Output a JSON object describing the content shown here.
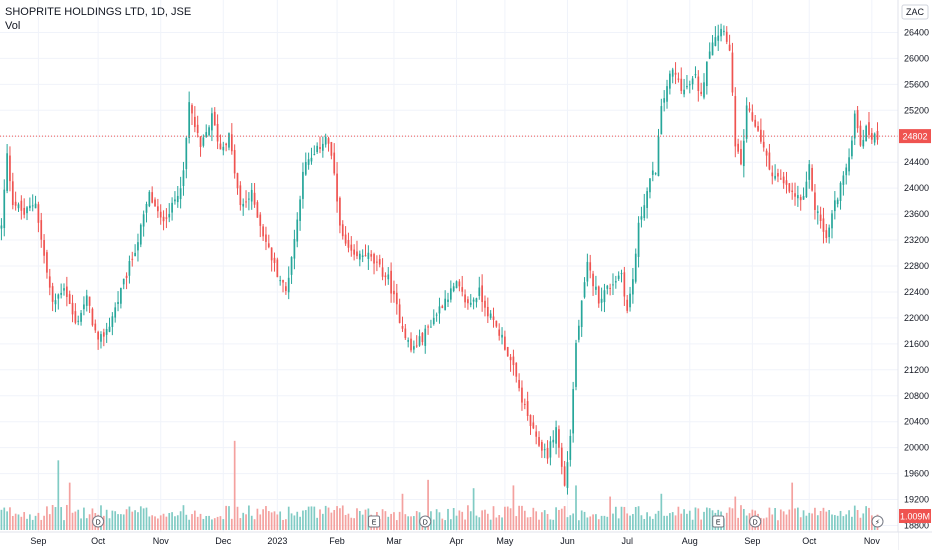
{
  "header": {
    "symbol_title": "SHOPRITE HOLDINGS LTD, 1D, JSE",
    "volume_label": "Vol",
    "currency": "ZAC"
  },
  "colors": {
    "up": "#26a69a",
    "down": "#ef5350",
    "up_volume": "#80cbc4",
    "down_volume": "#f4a19f",
    "grid": "#f0f3fa",
    "last_price_line": "#ef5350",
    "event_icon_stroke": "#787b86"
  },
  "chart_data": {
    "type": "candlestick",
    "title": "SHOPRITE HOLDINGS LTD, 1D, JSE",
    "ylabel": "ZAC",
    "ylim": [
      18700,
      26900
    ],
    "y_ticks": [
      18800,
      19200,
      19600,
      20000,
      20400,
      20800,
      21200,
      21600,
      22000,
      22400,
      22800,
      23200,
      23600,
      24000,
      24400,
      24800,
      25200,
      25600,
      26000,
      26400
    ],
    "x_ticks": [
      {
        "label": "Sep",
        "day": 13
      },
      {
        "label": "Oct",
        "day": 34
      },
      {
        "label": "Nov",
        "day": 56
      },
      {
        "label": "Dec",
        "day": 78
      },
      {
        "label": "2023",
        "day": 97
      },
      {
        "label": "Feb",
        "day": 118
      },
      {
        "label": "Mar",
        "day": 138
      },
      {
        "label": "Apr",
        "day": 160
      },
      {
        "label": "May",
        "day": 177
      },
      {
        "label": "Jun",
        "day": 199
      },
      {
        "label": "Jul",
        "day": 220
      },
      {
        "label": "Aug",
        "day": 242
      },
      {
        "label": "Sep",
        "day": 264
      },
      {
        "label": "Oct",
        "day": 284
      },
      {
        "label": "Nov",
        "day": 306
      }
    ],
    "total_days": 315,
    "last_price": 24802,
    "last_price_label": "24802",
    "last_volume_label": "1.009M",
    "volume_max": 3.0,
    "anchors": [
      [
        0,
        23400
      ],
      [
        2,
        24500
      ],
      [
        4,
        23800
      ],
      [
        8,
        23600
      ],
      [
        12,
        23800
      ],
      [
        14,
        23200
      ],
      [
        18,
        22200
      ],
      [
        22,
        22500
      ],
      [
        26,
        21900
      ],
      [
        30,
        22300
      ],
      [
        34,
        21600
      ],
      [
        38,
        21900
      ],
      [
        42,
        22400
      ],
      [
        48,
        23200
      ],
      [
        52,
        23900
      ],
      [
        56,
        23500
      ],
      [
        60,
        23700
      ],
      [
        64,
        24200
      ],
      [
        66,
        25300
      ],
      [
        70,
        24600
      ],
      [
        74,
        25100
      ],
      [
        77,
        24600
      ],
      [
        80,
        24800
      ],
      [
        84,
        23700
      ],
      [
        88,
        23900
      ],
      [
        92,
        23300
      ],
      [
        96,
        22800
      ],
      [
        100,
        22400
      ],
      [
        104,
        23500
      ],
      [
        106,
        24300
      ],
      [
        110,
        24500
      ],
      [
        114,
        24800
      ],
      [
        116,
        24500
      ],
      [
        118,
        23800
      ],
      [
        120,
        23200
      ],
      [
        124,
        22900
      ],
      [
        128,
        23000
      ],
      [
        132,
        22800
      ],
      [
        136,
        22600
      ],
      [
        140,
        22000
      ],
      [
        144,
        21500
      ],
      [
        148,
        21700
      ],
      [
        152,
        22000
      ],
      [
        156,
        22300
      ],
      [
        160,
        22500
      ],
      [
        164,
        22200
      ],
      [
        168,
        22400
      ],
      [
        172,
        22000
      ],
      [
        176,
        21700
      ],
      [
        180,
        21200
      ],
      [
        184,
        20600
      ],
      [
        188,
        20100
      ],
      [
        192,
        19900
      ],
      [
        195,
        20300
      ],
      [
        198,
        19400
      ],
      [
        200,
        20200
      ],
      [
        202,
        21600
      ],
      [
        204,
        22200
      ],
      [
        206,
        22800
      ],
      [
        210,
        22300
      ],
      [
        214,
        22500
      ],
      [
        218,
        22700
      ],
      [
        220,
        22100
      ],
      [
        222,
        22600
      ],
      [
        224,
        23400
      ],
      [
        226,
        23800
      ],
      [
        228,
        24100
      ],
      [
        230,
        24300
      ],
      [
        232,
        25200
      ],
      [
        234,
        25600
      ],
      [
        236,
        25800
      ],
      [
        240,
        25500
      ],
      [
        244,
        25700
      ],
      [
        246,
        25400
      ],
      [
        248,
        26000
      ],
      [
        250,
        26300
      ],
      [
        254,
        26500
      ],
      [
        256,
        26100
      ],
      [
        258,
        24700
      ],
      [
        260,
        24300
      ],
      [
        262,
        25200
      ],
      [
        266,
        24900
      ],
      [
        270,
        24300
      ],
      [
        274,
        24100
      ],
      [
        278,
        23900
      ],
      [
        282,
        23800
      ],
      [
        284,
        24300
      ],
      [
        286,
        23700
      ],
      [
        288,
        23500
      ],
      [
        290,
        23200
      ],
      [
        292,
        23600
      ],
      [
        294,
        23900
      ],
      [
        296,
        24200
      ],
      [
        298,
        24400
      ],
      [
        300,
        25200
      ],
      [
        302,
        24700
      ],
      [
        304,
        24900
      ],
      [
        306,
        24800
      ],
      [
        308,
        24802
      ]
    ],
    "spikes": [
      [
        20,
        2.5
      ],
      [
        24,
        1.7
      ],
      [
        82,
        3.2
      ],
      [
        141,
        1.3
      ],
      [
        150,
        1.8
      ],
      [
        166,
        1.5
      ],
      [
        180,
        1.6
      ],
      [
        202,
        1.6
      ],
      [
        214,
        1.2
      ],
      [
        232,
        1.3
      ],
      [
        258,
        1.2
      ],
      [
        278,
        1.7
      ]
    ],
    "events": [
      {
        "day": 34,
        "type": "D"
      },
      {
        "day": 131,
        "type": "E"
      },
      {
        "day": 149,
        "type": "D"
      },
      {
        "day": 252,
        "type": "E"
      },
      {
        "day": 265,
        "type": "D"
      },
      {
        "day": 308,
        "type": "⚡"
      }
    ]
  }
}
